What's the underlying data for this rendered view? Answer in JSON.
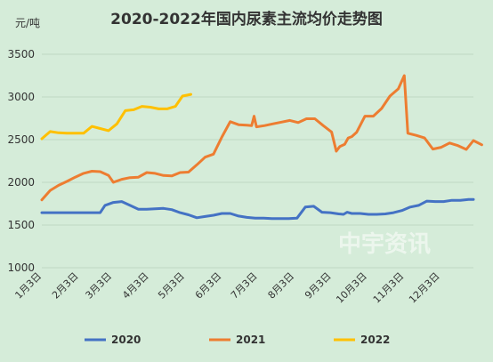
{
  "watermark": "中宇资讯",
  "chart_data": {
    "type": "line",
    "title": "2020-2022年国内尿素主流均价走势图",
    "ylabel": "元/吨",
    "ylim": [
      1000,
      3500
    ],
    "yticks": [
      1000,
      1500,
      2000,
      2500,
      3000,
      3500
    ],
    "x_ticks": [
      "1月3日",
      "2月3日",
      "3月3日",
      "4月3日",
      "5月3日",
      "6月3日",
      "7月3日",
      "8月3日",
      "9月3日",
      "10月3日",
      "11月3日",
      "12月3日"
    ],
    "x_tick_days": [
      0,
      31,
      59,
      90,
      120,
      151,
      181,
      212,
      243,
      273,
      304,
      334
    ],
    "xlim": [
      0,
      362
    ],
    "grid": true,
    "legend_position": "bottom",
    "series": [
      {
        "name": "2020",
        "color": "#4472c4",
        "points": [
          [
            0,
            1645
          ],
          [
            7,
            1645
          ],
          [
            14,
            1645
          ],
          [
            21,
            1645
          ],
          [
            28,
            1645
          ],
          [
            35,
            1645
          ],
          [
            42,
            1645
          ],
          [
            49,
            1645
          ],
          [
            53,
            1730
          ],
          [
            60,
            1765
          ],
          [
            67,
            1775
          ],
          [
            74,
            1730
          ],
          [
            81,
            1685
          ],
          [
            88,
            1685
          ],
          [
            95,
            1690
          ],
          [
            102,
            1695
          ],
          [
            109,
            1680
          ],
          [
            116,
            1645
          ],
          [
            123,
            1620
          ],
          [
            130,
            1585
          ],
          [
            137,
            1600
          ],
          [
            144,
            1615
          ],
          [
            151,
            1635
          ],
          [
            158,
            1635
          ],
          [
            165,
            1605
          ],
          [
            172,
            1590
          ],
          [
            179,
            1580
          ],
          [
            186,
            1580
          ],
          [
            193,
            1575
          ],
          [
            200,
            1575
          ],
          [
            207,
            1575
          ],
          [
            214,
            1580
          ],
          [
            221,
            1710
          ],
          [
            228,
            1720
          ],
          [
            235,
            1650
          ],
          [
            242,
            1645
          ],
          [
            249,
            1630
          ],
          [
            253,
            1625
          ],
          [
            256,
            1650
          ],
          [
            260,
            1635
          ],
          [
            267,
            1635
          ],
          [
            274,
            1625
          ],
          [
            281,
            1625
          ],
          [
            288,
            1630
          ],
          [
            295,
            1645
          ],
          [
            302,
            1670
          ],
          [
            309,
            1710
          ],
          [
            316,
            1730
          ],
          [
            323,
            1780
          ],
          [
            330,
            1775
          ],
          [
            337,
            1775
          ],
          [
            344,
            1790
          ],
          [
            351,
            1790
          ],
          [
            358,
            1800
          ],
          [
            362,
            1800
          ]
        ]
      },
      {
        "name": "2021",
        "color": "#ed7d31",
        "points": [
          [
            0,
            1795
          ],
          [
            7,
            1905
          ],
          [
            14,
            1965
          ],
          [
            21,
            2010
          ],
          [
            28,
            2060
          ],
          [
            35,
            2105
          ],
          [
            42,
            2130
          ],
          [
            49,
            2125
          ],
          [
            56,
            2080
          ],
          [
            60,
            2000
          ],
          [
            67,
            2035
          ],
          [
            74,
            2055
          ],
          [
            81,
            2060
          ],
          [
            88,
            2115
          ],
          [
            95,
            2105
          ],
          [
            102,
            2080
          ],
          [
            109,
            2075
          ],
          [
            116,
            2115
          ],
          [
            123,
            2120
          ],
          [
            130,
            2205
          ],
          [
            137,
            2295
          ],
          [
            144,
            2330
          ],
          [
            151,
            2530
          ],
          [
            158,
            2710
          ],
          [
            165,
            2675
          ],
          [
            172,
            2670
          ],
          [
            176,
            2665
          ],
          [
            178,
            2775
          ],
          [
            180,
            2650
          ],
          [
            187,
            2665
          ],
          [
            194,
            2685
          ],
          [
            201,
            2705
          ],
          [
            208,
            2725
          ],
          [
            215,
            2700
          ],
          [
            222,
            2745
          ],
          [
            229,
            2745
          ],
          [
            236,
            2665
          ],
          [
            243,
            2590
          ],
          [
            247,
            2365
          ],
          [
            250,
            2420
          ],
          [
            254,
            2445
          ],
          [
            257,
            2520
          ],
          [
            260,
            2535
          ],
          [
            264,
            2585
          ],
          [
            271,
            2775
          ],
          [
            278,
            2775
          ],
          [
            285,
            2865
          ],
          [
            292,
            3010
          ],
          [
            299,
            3095
          ],
          [
            304,
            3250
          ],
          [
            307,
            2575
          ],
          [
            314,
            2550
          ],
          [
            321,
            2520
          ],
          [
            328,
            2390
          ],
          [
            335,
            2410
          ],
          [
            342,
            2460
          ],
          [
            349,
            2430
          ],
          [
            356,
            2385
          ],
          [
            362,
            2490
          ],
          [
            369,
            2440
          ]
        ]
      },
      {
        "name": "2022",
        "color": "#ffc000",
        "points": [
          [
            0,
            2510
          ],
          [
            7,
            2595
          ],
          [
            14,
            2580
          ],
          [
            21,
            2575
          ],
          [
            28,
            2575
          ],
          [
            35,
            2575
          ],
          [
            42,
            2655
          ],
          [
            49,
            2630
          ],
          [
            56,
            2605
          ],
          [
            63,
            2685
          ],
          [
            70,
            2840
          ],
          [
            77,
            2850
          ],
          [
            84,
            2890
          ],
          [
            91,
            2880
          ],
          [
            98,
            2860
          ],
          [
            105,
            2860
          ],
          [
            112,
            2890
          ],
          [
            118,
            3010
          ],
          [
            125,
            3030
          ]
        ]
      }
    ]
  }
}
